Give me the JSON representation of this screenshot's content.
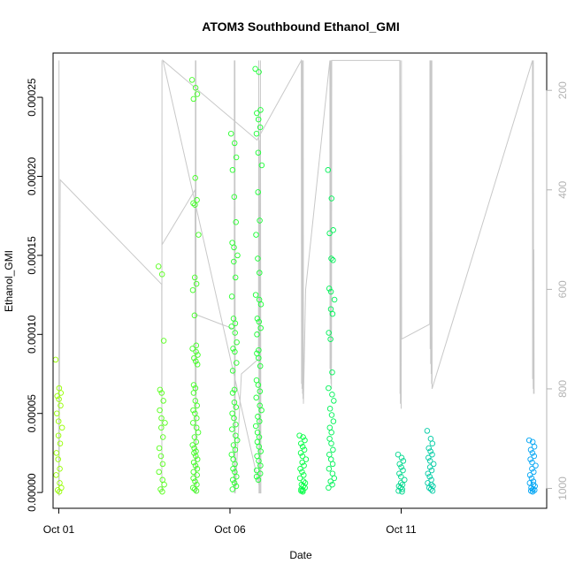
{
  "chart_data": {
    "type": "scatter",
    "title": "ATOM3 Southbound Ethanol_GMI",
    "xlabel": "Date",
    "ylabel": "Ethanol_GMI",
    "xlim": [
      "2016-09-30T20:00",
      "2016-10-15T06:00"
    ],
    "ylim": [
      -1e-05,
      0.000278
    ],
    "y_ticks": [
      0.0,
      5e-05,
      0.0001,
      0.00015,
      0.0002,
      0.00025
    ],
    "y_tick_labels": [
      "0.00000",
      "0.00005",
      "0.00010",
      "0.00015",
      "0.00020",
      "0.00025"
    ],
    "x_ticks": [
      "2016-10-01",
      "2016-10-06",
      "2016-10-11"
    ],
    "x_tick_labels": [
      "Oct 01",
      "Oct 06",
      "Oct 11"
    ],
    "y2_ticks": [
      200,
      400,
      600,
      800,
      1000
    ],
    "y2_tick_labels": [
      "200",
      "400",
      "600",
      "800",
      "1000"
    ],
    "y2_reversed": true,
    "y2_lim": [
      1040,
      125
    ],
    "colors": {
      "pressure_line": "#c8c8c8",
      "start": "#9bff00",
      "mid": "#00ff40",
      "end": "#009fff"
    },
    "series": [
      {
        "segments": [
          {
            "t": "2016-10-01T00:05",
            "values": [
              8.4e-05,
              6.6e-05,
              6.3e-05,
              6.1e-05,
              5.9e-05,
              5.5e-05,
              5e-05,
              4.5e-05,
              4.1e-05,
              3.6e-05,
              3.1e-05,
              2.5e-05,
              2.1e-05,
              1.5e-05,
              1.1e-05,
              6e-06,
              3e-06,
              1.5e-06,
              5e-07
            ]
          },
          {
            "t": "2016-10-04T00:10",
            "values": [
              0.000143,
              0.000138,
              9.6e-05,
              6.5e-05,
              6.3e-05,
              5.8e-05,
              5.2e-05,
              4.7e-05,
              4.4e-05,
              4.1e-05,
              3.5e-05,
              2.8e-05,
              2.3e-05,
              1.8e-05,
              1.3e-05,
              8e-06,
              5e-06,
              2e-06,
              5e-07
            ]
          },
          {
            "t": "2016-10-04T23:40",
            "values": [
              0.000261,
              0.000256,
              0.000252,
              0.000249,
              0.000199,
              0.000185,
              0.000183,
              0.000182,
              0.000163,
              0.000136,
              0.000132,
              0.000128,
              0.000112,
              9.3e-05,
              9.1e-05,
              8.9e-05,
              8.7e-05,
              8.5e-05,
              8.3e-05,
              8.1e-05,
              6.8e-05,
              6.6e-05,
              6.3e-05,
              5.8e-05,
              5.5e-05,
              5.2e-05,
              5e-05,
              4.7e-05,
              4.4e-05,
              4.1e-05,
              3.8e-05,
              3.5e-05,
              3.2e-05,
              3e-05,
              2.8e-05,
              2.6e-05,
              2.5e-05,
              2.3e-05,
              2.1e-05,
              1.9e-05,
              1.7e-05,
              1.5e-05,
              1.3e-05,
              1.1e-05,
              9e-06,
              7e-06,
              5e-06,
              3e-06,
              2e-06,
              1e-06
            ]
          },
          {
            "t": "2016-10-06T03:00",
            "values": [
              0.000227,
              0.000221,
              0.000212,
              0.000204,
              0.000187,
              0.000171,
              0.000158,
              0.000155,
              0.00015,
              0.000146,
              0.000136,
              0.000124,
              0.00011,
              0.000107,
              0.000105,
              0.000101,
              9.5e-05,
              9.1e-05,
              8.9e-05,
              8.2e-05,
              7.7e-05,
              6.5e-05,
              6.3e-05,
              5.7e-05,
              5.4e-05,
              5e-05,
              4.7e-05,
              4.3e-05,
              4e-05,
              3.6e-05,
              3.3e-05,
              3e-05,
              2.7e-05,
              2.4e-05,
              2.1e-05,
              1.8e-05,
              1.5e-05,
              1.3e-05,
              1e-05,
              8e-06,
              6e-06,
              4e-06,
              2e-06
            ]
          },
          {
            "t": "2016-10-06T20:00",
            "values": [
              0.000268,
              0.000266,
              0.000242,
              0.00024,
              0.000236,
              0.000231,
              0.000227,
              0.000215,
              0.000207,
              0.00019,
              0.000172,
              0.000163,
              0.000148,
              0.000139,
              0.000125,
              0.000122,
              0.000119,
              0.00011,
              0.000108,
              0.000104,
              0.0001,
              9e-05,
              8.8e-05,
              8.5e-05,
              8e-05,
              7.1e-05,
              6.8e-05,
              6.4e-05,
              6e-05,
              5.5e-05,
              5.2e-05,
              4.8e-05,
              4.5e-05,
              4.2e-05,
              3.8e-05,
              3.5e-05,
              3.2e-05,
              2.9e-05,
              2.6e-05,
              2.3e-05,
              2e-05,
              1.7e-05,
              1.4e-05,
              1.2e-05,
              1e-05,
              8e-06
            ]
          },
          {
            "t": "2016-10-08T03:00",
            "values": [
              3.6e-05,
              3.5e-05,
              3.3e-05,
              3.1e-05,
              2.9e-05,
              2.7e-05,
              2.5e-05,
              2.3e-05,
              2.1e-05,
              1.9e-05,
              1.7e-05,
              1.5e-05,
              1.3e-05,
              1.1e-05,
              9e-06,
              7e-06,
              6e-06,
              5e-06,
              4e-06,
              3e-06,
              2e-06,
              1.5e-06,
              1e-06,
              5e-07
            ]
          },
          {
            "t": "2016-10-08T23:00",
            "values": [
              0.000204,
              0.000186,
              0.000166,
              0.000164,
              0.000148,
              0.000147,
              0.000129,
              0.000127,
              0.000122,
              0.000116,
              0.000113,
              0.000101,
              9.7e-05,
              7.6e-05,
              6.6e-05,
              6.2e-05,
              5.8e-05,
              5.3e-05,
              4.9e-05,
              4.5e-05,
              4.1e-05,
              3.8e-05,
              3.4e-05,
              3.1e-05,
              2.7e-05,
              2.4e-05,
              2.1e-05,
              1.8e-05,
              1.5e-05,
              1.2e-05,
              9e-06,
              7e-06,
              5e-06,
              3e-06
            ]
          },
          {
            "t": "2016-10-11T00:05",
            "values": [
              2.4e-05,
              2.2e-05,
              2e-05,
              1.8e-05,
              1.6e-05,
              1.4e-05,
              1.2e-05,
              1e-05,
              8e-06,
              6e-06,
              5e-06,
              4e-06,
              3e-06,
              2e-06,
              1e-06,
              5e-07
            ]
          },
          {
            "t": "2016-10-11T20:30",
            "values": [
              3.9e-05,
              3.4e-05,
              3.1e-05,
              2.8e-05,
              2.6e-05,
              2.4e-05,
              2.2e-05,
              2e-05,
              1.8e-05,
              1.6e-05,
              1.4e-05,
              1.2e-05,
              1e-05,
              8e-06,
              6e-06,
              5e-06,
              4e-06,
              3e-06,
              2e-06,
              1e-06
            ]
          },
          {
            "t": "2016-10-14T20:00",
            "values": [
              3.3e-05,
              3.2e-05,
              2.9e-05,
              2.7e-05,
              2.5e-05,
              2.3e-05,
              2.1e-05,
              1.9e-05,
              1.7e-05,
              1.5e-05,
              1.3e-05,
              1.1e-05,
              9e-06,
              7e-06,
              6e-06,
              5e-06,
              4e-06,
              3e-06,
              2e-06,
              1.5e-06,
              1e-06,
              5e-07
            ]
          }
        ]
      }
    ],
    "secondary_pressure_line": {
      "points": [
        [
          "2016-10-01T00:00",
          1010
        ],
        [
          "2016-10-01T00:05",
          500
        ],
        [
          "2016-10-01T00:08",
          140
        ],
        [
          "2016-10-01T00:10",
          330
        ],
        [
          "2016-10-01T00:12",
          1015
        ],
        [
          "2016-10-01T01:00",
          380
        ],
        [
          "2016-10-04T00:10",
          590
        ],
        [
          "2016-10-04T00:15",
          1005
        ],
        [
          "2016-10-04T00:20",
          140
        ],
        [
          "2016-10-04T00:25",
          510
        ],
        [
          "2016-10-04T23:30",
          400
        ],
        [
          "2016-10-04T23:40",
          810
        ],
        [
          "2016-10-04T23:45",
          140
        ],
        [
          "2016-10-04T23:50",
          1010
        ],
        [
          "2016-10-05T00:00",
          200
        ],
        [
          "2016-10-05T00:05",
          780
        ],
        [
          "2016-10-05T00:10",
          140
        ],
        [
          "2016-10-05T00:15",
          1010
        ],
        [
          "2016-10-04T23:35",
          650
        ],
        [
          "2016-10-06T03:00",
          680
        ],
        [
          "2016-10-06T03:05",
          140
        ],
        [
          "2016-10-06T03:10",
          1010
        ],
        [
          "2016-10-06T03:20",
          820
        ],
        [
          "2016-10-06T03:30",
          140
        ],
        [
          "2016-10-06T03:40",
          1010
        ],
        [
          "2016-10-06T08:00",
          770
        ],
        [
          "2016-10-06T20:00",
          740
        ],
        [
          "2016-10-06T20:10",
          140
        ],
        [
          "2016-10-06T20:20",
          1010
        ],
        [
          "2016-10-06T20:30",
          300
        ],
        [
          "2016-10-06T21:00",
          1010
        ],
        [
          "2016-10-06T21:20",
          140
        ],
        [
          "2016-10-06T21:40",
          1010
        ],
        [
          "2016-10-04T01:00",
          140
        ],
        [
          "2016-10-06T19:00",
          300
        ],
        [
          "2016-10-08T02:00",
          140
        ],
        [
          "2016-10-08T02:10",
          790
        ],
        [
          "2016-10-08T02:20",
          140
        ],
        [
          "2016-10-08T02:30",
          800
        ],
        [
          "2016-10-08T02:40",
          140
        ],
        [
          "2016-10-08T02:50",
          810
        ],
        [
          "2016-10-08T03:00",
          350
        ],
        [
          "2016-10-08T03:10",
          820
        ],
        [
          "2016-10-08T03:20",
          140
        ],
        [
          "2016-10-08T03:30",
          830
        ],
        [
          "2016-10-08T05:00",
          600
        ],
        [
          "2016-10-08T22:00",
          140
        ],
        [
          "2016-10-08T22:10",
          760
        ],
        [
          "2016-10-08T22:20",
          140
        ],
        [
          "2016-10-08T22:30",
          780
        ],
        [
          "2016-10-08T22:40",
          140
        ],
        [
          "2016-10-08T22:50",
          790
        ],
        [
          "2016-10-08T23:00",
          140
        ],
        [
          "2016-10-08T23:10",
          800
        ],
        [
          "2016-10-08T23:20",
          140
        ],
        [
          "2016-10-10T23:00",
          140
        ],
        [
          "2016-10-10T23:10",
          810
        ],
        [
          "2016-10-10T23:20",
          140
        ],
        [
          "2016-10-10T23:30",
          830
        ],
        [
          "2016-10-10T23:40",
          700
        ],
        [
          "2016-10-11T00:00",
          840
        ],
        [
          "2016-10-11T00:10",
          140
        ],
        [
          "2016-10-11T00:20",
          700
        ],
        [
          "2016-10-11T20:00",
          670
        ],
        [
          "2016-10-11T20:10",
          140
        ],
        [
          "2016-10-11T20:20",
          720
        ],
        [
          "2016-10-11T20:30",
          140
        ],
        [
          "2016-10-11T20:40",
          750
        ],
        [
          "2016-10-11T20:50",
          140
        ],
        [
          "2016-10-11T21:00",
          770
        ],
        [
          "2016-10-11T21:10",
          140
        ],
        [
          "2016-10-11T21:20",
          790
        ],
        [
          "2016-10-11T21:30",
          140
        ],
        [
          "2016-10-11T21:40",
          800
        ],
        [
          "2016-10-14T20:00",
          140
        ],
        [
          "2016-10-14T20:10",
          780
        ],
        [
          "2016-10-14T20:20",
          140
        ],
        [
          "2016-10-14T20:30",
          800
        ],
        [
          "2016-10-14T20:40",
          140
        ],
        [
          "2016-10-14T20:50",
          810
        ],
        [
          "2016-10-14T21:00",
          520
        ],
        [
          "2016-10-14T21:10",
          810
        ]
      ]
    },
    "grid": false,
    "legend": "none"
  }
}
